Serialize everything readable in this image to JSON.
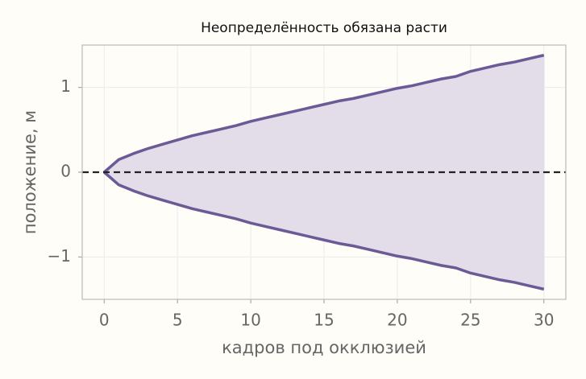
{
  "chart_data": {
    "type": "line",
    "title": "Неопределённость обязана расти",
    "xlabel": "кадров под окклюзией",
    "ylabel": "положение, м",
    "x": [
      0,
      1,
      2,
      3,
      4,
      5,
      6,
      7,
      8,
      9,
      10,
      11,
      12,
      13,
      14,
      15,
      16,
      17,
      18,
      19,
      20,
      21,
      22,
      23,
      24,
      25,
      26,
      27,
      28,
      29,
      30
    ],
    "series": [
      {
        "color": "#6b5a96",
        "values": [
          0,
          0.15,
          0.22,
          0.28,
          0.33,
          0.38,
          0.43,
          0.47,
          0.51,
          0.55,
          0.6,
          0.64,
          0.68,
          0.72,
          0.76,
          0.8,
          0.84,
          0.87,
          0.91,
          0.95,
          0.99,
          1.02,
          1.06,
          1.1,
          1.13,
          1.19,
          1.23,
          1.27,
          1.3,
          1.34,
          1.38
        ]
      },
      {
        "color": "#6b5a96",
        "values": [
          0,
          -0.15,
          -0.22,
          -0.28,
          -0.33,
          -0.38,
          -0.43,
          -0.47,
          -0.51,
          -0.55,
          -0.6,
          -0.64,
          -0.68,
          -0.72,
          -0.76,
          -0.8,
          -0.84,
          -0.87,
          -0.91,
          -0.95,
          -0.99,
          -1.02,
          -1.06,
          -1.1,
          -1.13,
          -1.19,
          -1.23,
          -1.27,
          -1.3,
          -1.34,
          -1.38
        ]
      }
    ],
    "fill_between": true,
    "fill_color": "#e3dde9",
    "hline": 0,
    "hline_color": "#222222",
    "xlim": [
      -1.5,
      31.5
    ],
    "xticks": [
      0,
      5,
      10,
      15,
      20,
      25,
      30
    ],
    "ylim": [
      -1.5,
      1.5
    ],
    "yticks": [
      {
        "value": -1,
        "label": "−1"
      },
      0,
      1
    ],
    "grid": true
  }
}
